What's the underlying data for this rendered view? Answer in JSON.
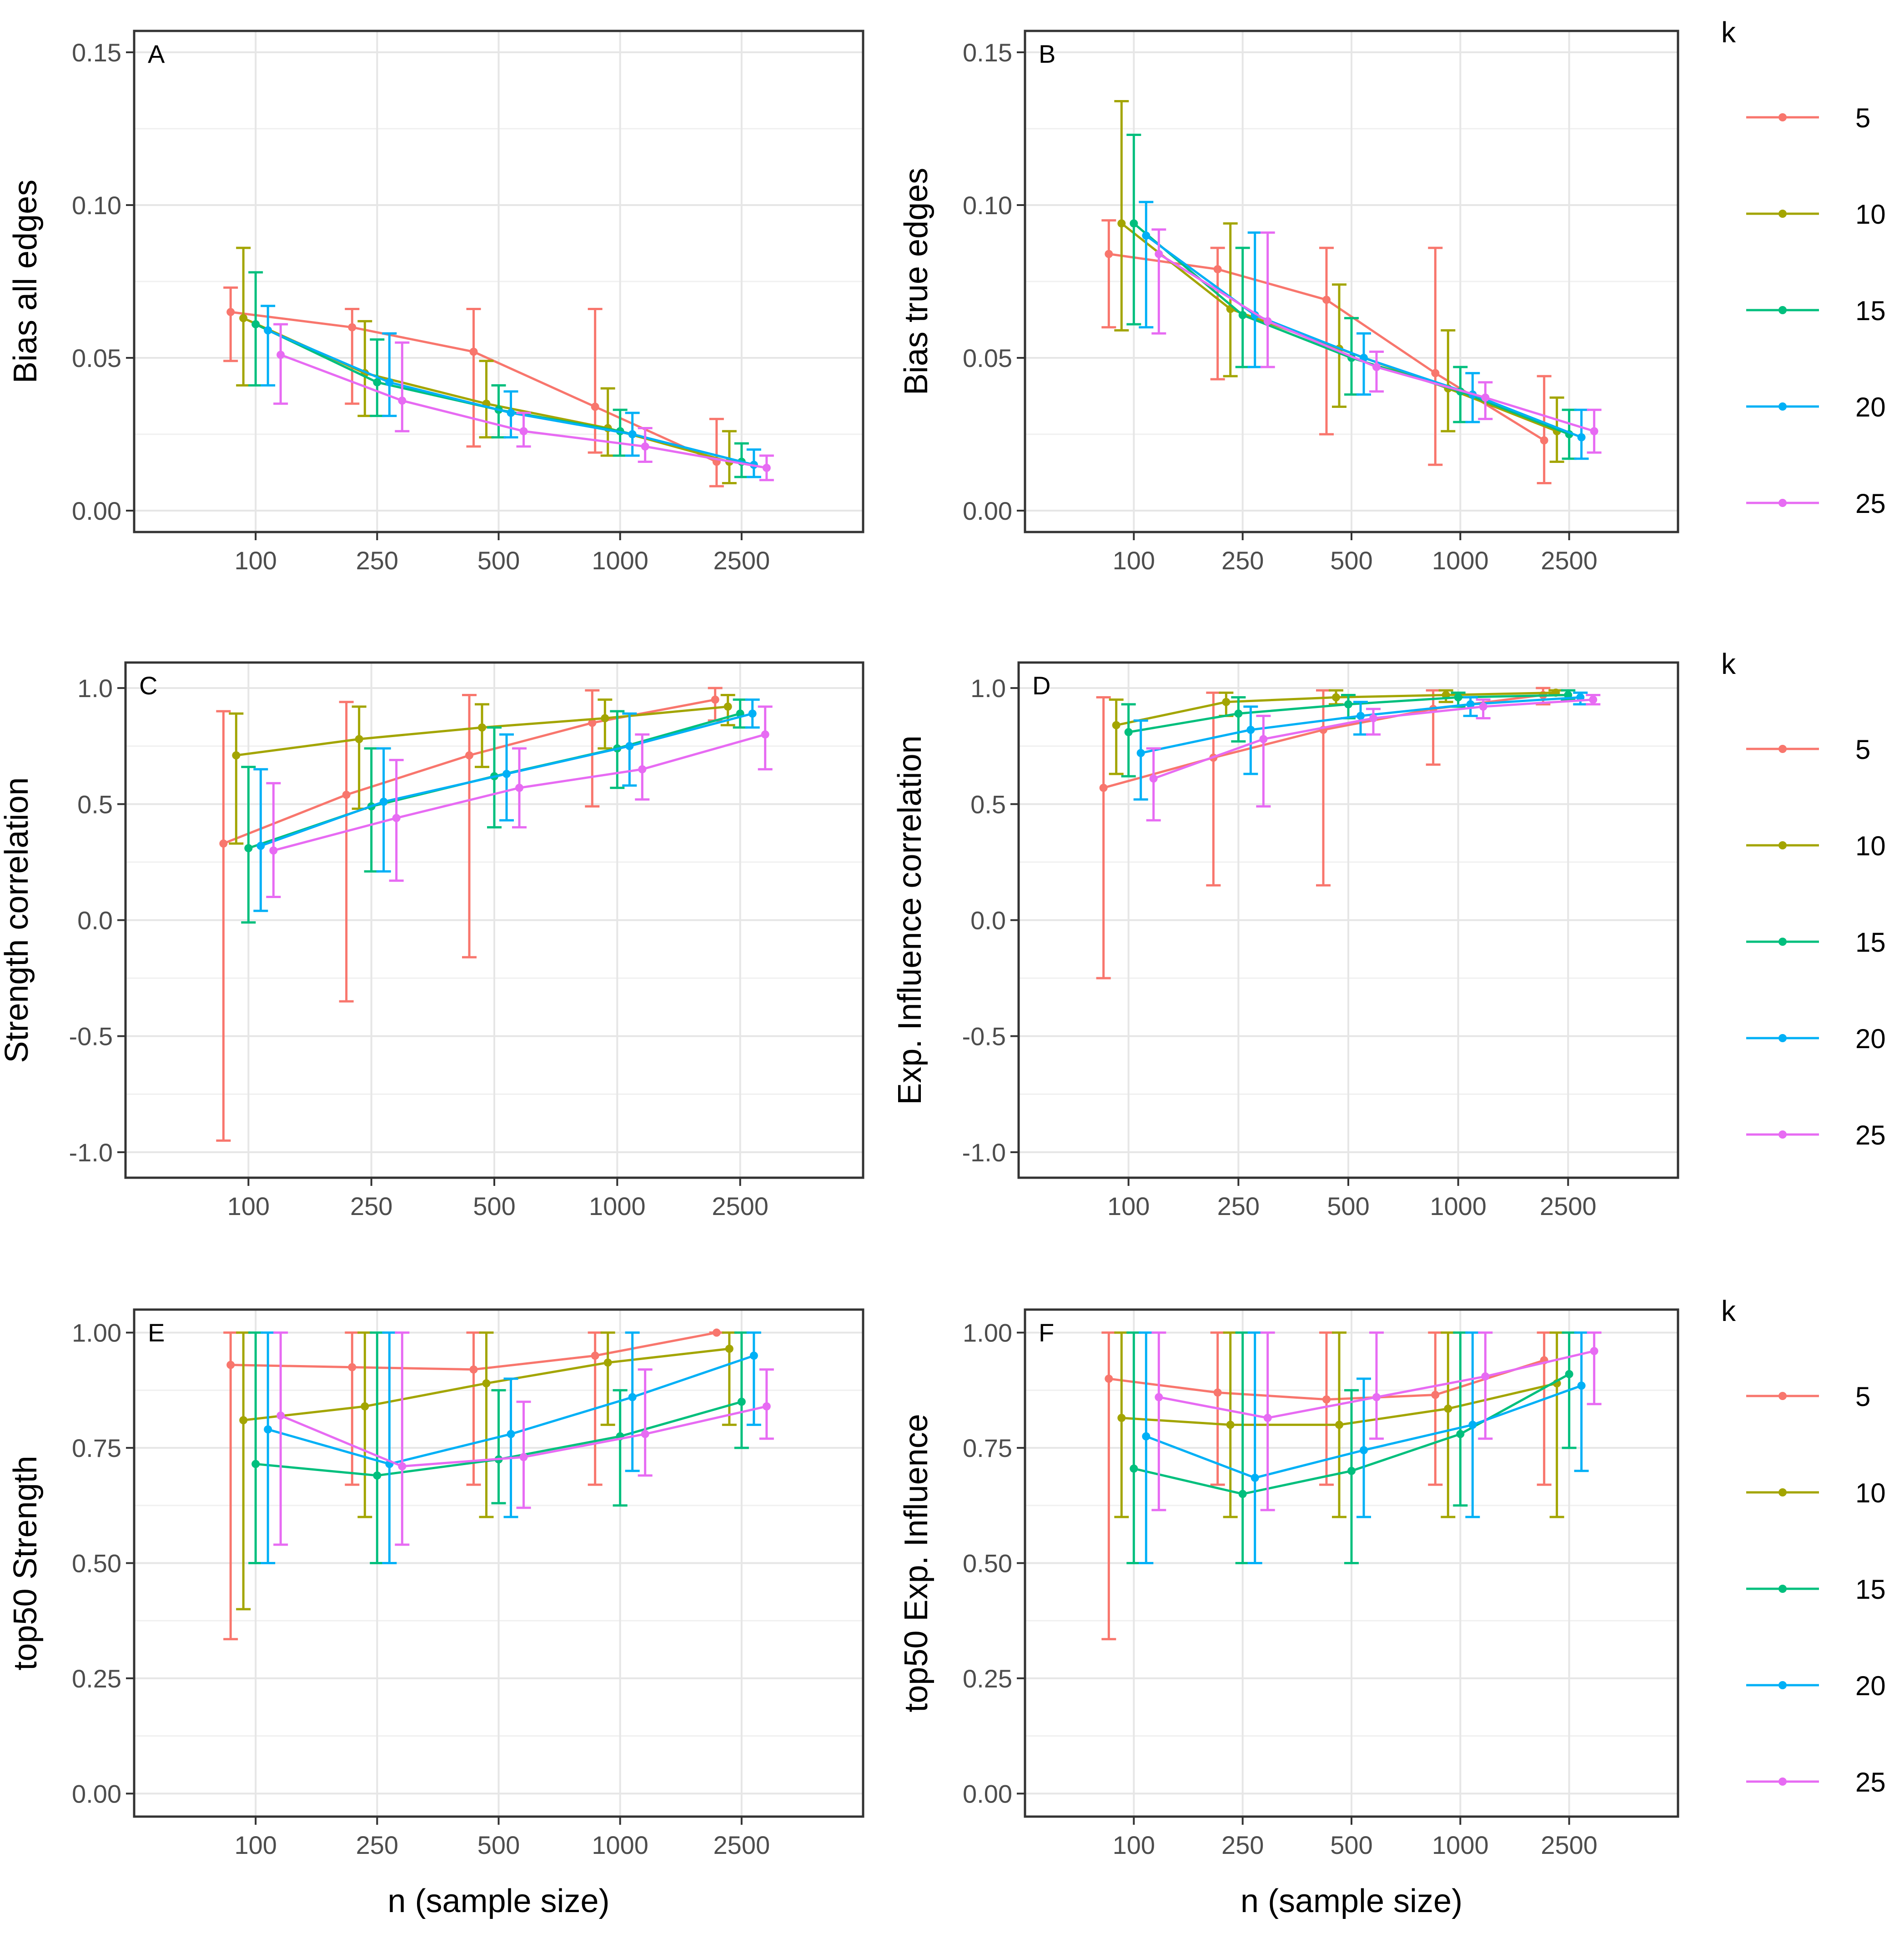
{
  "legend_title": "k",
  "series_names": [
    "5",
    "10",
    "15",
    "20",
    "25"
  ],
  "series_colors": [
    "#F8766D",
    "#A3A500",
    "#00BF7D",
    "#00B0F6",
    "#E76BF3"
  ],
  "chart_data": [
    {
      "type": "line",
      "tag": "A",
      "xlabel": "",
      "ylabel": "Bias all edges",
      "categories": [
        "100",
        "250",
        "500",
        "1000",
        "2500"
      ],
      "ylim": [
        -0.007,
        0.157
      ],
      "yticks": [
        0,
        0.05,
        0.1,
        0.15
      ],
      "ytick_labels": [
        "0.00",
        "0.05",
        "0.10",
        "0.15"
      ],
      "grid": true,
      "series": [
        {
          "name": "5",
          "values": [
            0.065,
            0.06,
            0.052,
            0.034,
            0.016
          ],
          "err_low": [
            0.049,
            0.035,
            0.021,
            0.019,
            0.008
          ],
          "err_high": [
            0.073,
            0.066,
            0.066,
            0.066,
            0.03
          ]
        },
        {
          "name": "10",
          "values": [
            0.063,
            0.045,
            0.035,
            0.027,
            0.016
          ],
          "err_low": [
            0.041,
            0.031,
            0.024,
            0.018,
            0.009
          ],
          "err_high": [
            0.086,
            0.062,
            0.049,
            0.04,
            0.026
          ]
        },
        {
          "name": "15",
          "values": [
            0.061,
            0.042,
            0.033,
            0.026,
            0.016
          ],
          "err_low": [
            0.041,
            0.031,
            0.024,
            0.018,
            0.011
          ],
          "err_high": [
            0.078,
            0.056,
            0.041,
            0.033,
            0.022
          ]
        },
        {
          "name": "20",
          "values": [
            0.059,
            0.042,
            0.032,
            0.025,
            0.015
          ],
          "err_low": [
            0.041,
            0.031,
            0.024,
            0.018,
            0.011
          ],
          "err_high": [
            0.067,
            0.058,
            0.039,
            0.032,
            0.02
          ]
        },
        {
          "name": "25",
          "values": [
            0.051,
            0.036,
            0.026,
            0.021,
            0.014
          ],
          "err_low": [
            0.035,
            0.026,
            0.021,
            0.016,
            0.01
          ],
          "err_high": [
            0.061,
            0.055,
            0.032,
            0.027,
            0.018
          ]
        }
      ]
    },
    {
      "type": "line",
      "tag": "B",
      "xlabel": "",
      "ylabel": "Bias true edges",
      "categories": [
        "100",
        "250",
        "500",
        "1000",
        "2500"
      ],
      "ylim": [
        -0.007,
        0.157
      ],
      "yticks": [
        0,
        0.05,
        0.1,
        0.15
      ],
      "ytick_labels": [
        "0.00",
        "0.05",
        "0.10",
        "0.15"
      ],
      "grid": true,
      "series": [
        {
          "name": "5",
          "values": [
            0.084,
            0.079,
            0.069,
            0.045,
            0.023
          ],
          "err_low": [
            0.06,
            0.043,
            0.025,
            0.015,
            0.009
          ],
          "err_high": [
            0.095,
            0.086,
            0.086,
            0.086,
            0.044
          ]
        },
        {
          "name": "10",
          "values": [
            0.094,
            0.066,
            0.053,
            0.04,
            0.026
          ],
          "err_low": [
            0.059,
            0.044,
            0.034,
            0.026,
            0.016
          ],
          "err_high": [
            0.134,
            0.094,
            0.074,
            0.059,
            0.037
          ]
        },
        {
          "name": "15",
          "values": [
            0.094,
            0.064,
            0.05,
            0.039,
            0.025
          ],
          "err_low": [
            0.061,
            0.047,
            0.038,
            0.029,
            0.017
          ],
          "err_high": [
            0.123,
            0.086,
            0.063,
            0.047,
            0.033
          ]
        },
        {
          "name": "20",
          "values": [
            0.09,
            0.064,
            0.05,
            0.038,
            0.024
          ],
          "err_low": [
            0.06,
            0.047,
            0.038,
            0.029,
            0.017
          ],
          "err_high": [
            0.101,
            0.091,
            0.058,
            0.045,
            0.033
          ]
        },
        {
          "name": "25",
          "values": [
            0.084,
            0.062,
            0.047,
            0.037,
            0.026
          ],
          "err_low": [
            0.058,
            0.047,
            0.039,
            0.03,
            0.019
          ],
          "err_high": [
            0.092,
            0.091,
            0.052,
            0.042,
            0.033
          ]
        }
      ]
    },
    {
      "type": "line",
      "tag": "C",
      "xlabel": "",
      "ylabel": "Strength correlation",
      "categories": [
        "100",
        "250",
        "500",
        "1000",
        "2500"
      ],
      "ylim": [
        -1.11,
        1.11
      ],
      "yticks": [
        -1,
        -0.5,
        0,
        0.5,
        1
      ],
      "ytick_labels": [
        "-1.0",
        "-0.5",
        "0.0",
        "0.5",
        "1.0"
      ],
      "grid": true,
      "series": [
        {
          "name": "5",
          "values": [
            0.33,
            0.54,
            0.71,
            0.85,
            0.95
          ],
          "err_low": [
            -0.95,
            -0.35,
            -0.16,
            0.49,
            0.86
          ],
          "err_high": [
            0.9,
            0.94,
            0.97,
            0.99,
            1.0
          ]
        },
        {
          "name": "10",
          "values": [
            0.71,
            0.78,
            0.83,
            0.87,
            0.92
          ],
          "err_low": [
            0.33,
            0.48,
            0.66,
            0.74,
            0.84
          ],
          "err_high": [
            0.89,
            0.92,
            0.93,
            0.95,
            0.97
          ]
        },
        {
          "name": "15",
          "values": [
            0.31,
            0.49,
            0.62,
            0.74,
            0.89
          ],
          "err_low": [
            -0.01,
            0.21,
            0.4,
            0.57,
            0.83
          ],
          "err_high": [
            0.66,
            0.74,
            0.83,
            0.9,
            0.95
          ]
        },
        {
          "name": "20",
          "values": [
            0.32,
            0.51,
            0.63,
            0.75,
            0.89
          ],
          "err_low": [
            0.04,
            0.21,
            0.43,
            0.58,
            0.83
          ],
          "err_high": [
            0.65,
            0.74,
            0.8,
            0.89,
            0.95
          ]
        },
        {
          "name": "25",
          "values": [
            0.3,
            0.44,
            0.57,
            0.65,
            0.8
          ],
          "err_low": [
            0.1,
            0.17,
            0.4,
            0.52,
            0.65
          ],
          "err_high": [
            0.59,
            0.69,
            0.74,
            0.8,
            0.92
          ]
        }
      ]
    },
    {
      "type": "line",
      "tag": "D",
      "xlabel": "",
      "ylabel": "Exp. Influence correlation",
      "categories": [
        "100",
        "250",
        "500",
        "1000",
        "2500"
      ],
      "ylim": [
        -1.11,
        1.11
      ],
      "yticks": [
        -1,
        -0.5,
        0,
        0.5,
        1
      ],
      "ytick_labels": [
        "-1.0",
        "-0.5",
        "0.0",
        "0.5",
        "1.0"
      ],
      "grid": true,
      "series": [
        {
          "name": "5",
          "values": [
            0.57,
            0.7,
            0.82,
            0.91,
            0.97
          ],
          "err_low": [
            -0.25,
            0.15,
            0.15,
            0.67,
            0.93
          ],
          "err_high": [
            0.96,
            0.98,
            0.99,
            0.99,
            1.0
          ]
        },
        {
          "name": "10",
          "values": [
            0.84,
            0.94,
            0.96,
            0.97,
            0.98
          ],
          "err_low": [
            0.63,
            0.88,
            0.93,
            0.94,
            0.97
          ],
          "err_high": [
            0.95,
            0.98,
            0.99,
            0.99,
            0.99
          ]
        },
        {
          "name": "15",
          "values": [
            0.81,
            0.89,
            0.93,
            0.96,
            0.97
          ],
          "err_low": [
            0.62,
            0.77,
            0.87,
            0.92,
            0.95
          ],
          "err_high": [
            0.93,
            0.96,
            0.97,
            0.98,
            0.99
          ]
        },
        {
          "name": "20",
          "values": [
            0.72,
            0.82,
            0.88,
            0.93,
            0.96
          ],
          "err_low": [
            0.52,
            0.63,
            0.8,
            0.88,
            0.93
          ],
          "err_high": [
            0.86,
            0.92,
            0.94,
            0.96,
            0.98
          ]
        },
        {
          "name": "25",
          "values": [
            0.61,
            0.78,
            0.87,
            0.92,
            0.95
          ],
          "err_low": [
            0.43,
            0.49,
            0.8,
            0.87,
            0.93
          ],
          "err_high": [
            0.74,
            0.88,
            0.91,
            0.95,
            0.97
          ]
        }
      ]
    },
    {
      "type": "line",
      "tag": "E",
      "xlabel": "n (sample size)",
      "ylabel": "top50 Strength",
      "categories": [
        "100",
        "250",
        "500",
        "1000",
        "2500"
      ],
      "ylim": [
        -0.05,
        1.05
      ],
      "yticks": [
        0,
        0.25,
        0.5,
        0.75,
        1
      ],
      "ytick_labels": [
        "0.00",
        "0.25",
        "0.50",
        "0.75",
        "1.00"
      ],
      "grid": true,
      "series": [
        {
          "name": "5",
          "values": [
            0.93,
            0.925,
            0.92,
            0.95,
            1.0
          ],
          "err_low": [
            0.335,
            0.67,
            0.67,
            0.67,
            1.0
          ],
          "err_high": [
            1.0,
            1.0,
            1.0,
            1.0,
            1.0
          ]
        },
        {
          "name": "10",
          "values": [
            0.81,
            0.84,
            0.89,
            0.935,
            0.965
          ],
          "err_low": [
            0.4,
            0.6,
            0.6,
            0.8,
            0.8
          ],
          "err_high": [
            1.0,
            1.0,
            1.0,
            1.0,
            1.0
          ]
        },
        {
          "name": "15",
          "values": [
            0.715,
            0.69,
            0.725,
            0.775,
            0.85
          ],
          "err_low": [
            0.5,
            0.5,
            0.63,
            0.625,
            0.75
          ],
          "err_high": [
            1.0,
            1.0,
            0.875,
            0.875,
            1.0
          ]
        },
        {
          "name": "20",
          "values": [
            0.79,
            0.715,
            0.78,
            0.86,
            0.95
          ],
          "err_low": [
            0.5,
            0.5,
            0.6,
            0.7,
            0.8
          ],
          "err_high": [
            1.0,
            1.0,
            0.9,
            1.0,
            1.0
          ]
        },
        {
          "name": "25",
          "values": [
            0.82,
            0.71,
            0.73,
            0.78,
            0.84
          ],
          "err_low": [
            0.54,
            0.54,
            0.62,
            0.69,
            0.77
          ],
          "err_high": [
            1.0,
            1.0,
            0.85,
            0.92,
            0.92
          ]
        }
      ]
    },
    {
      "type": "line",
      "tag": "F",
      "xlabel": "n (sample size)",
      "ylabel": "top50 Exp. Influence",
      "categories": [
        "100",
        "250",
        "500",
        "1000",
        "2500"
      ],
      "ylim": [
        -0.05,
        1.05
      ],
      "yticks": [
        0,
        0.25,
        0.5,
        0.75,
        1
      ],
      "ytick_labels": [
        "0.00",
        "0.25",
        "0.50",
        "0.75",
        "1.00"
      ],
      "grid": true,
      "series": [
        {
          "name": "5",
          "values": [
            0.9,
            0.87,
            0.855,
            0.865,
            0.94
          ],
          "err_low": [
            0.335,
            0.67,
            0.67,
            0.67,
            0.67
          ],
          "err_high": [
            1.0,
            1.0,
            1.0,
            1.0,
            1.0
          ]
        },
        {
          "name": "10",
          "values": [
            0.815,
            0.8,
            0.8,
            0.835,
            0.89
          ],
          "err_low": [
            0.6,
            0.6,
            0.6,
            0.6,
            0.6
          ],
          "err_high": [
            1.0,
            1.0,
            1.0,
            1.0,
            1.0
          ]
        },
        {
          "name": "15",
          "values": [
            0.705,
            0.65,
            0.7,
            0.78,
            0.91
          ],
          "err_low": [
            0.5,
            0.5,
            0.5,
            0.625,
            0.75
          ],
          "err_high": [
            1.0,
            1.0,
            0.875,
            1.0,
            1.0
          ]
        },
        {
          "name": "20",
          "values": [
            0.775,
            0.685,
            0.745,
            0.8,
            0.885
          ],
          "err_low": [
            0.5,
            0.5,
            0.6,
            0.6,
            0.7
          ],
          "err_high": [
            1.0,
            1.0,
            0.9,
            1.0,
            1.0
          ]
        },
        {
          "name": "25",
          "values": [
            0.86,
            0.815,
            0.86,
            0.905,
            0.96
          ],
          "err_low": [
            0.615,
            0.615,
            0.77,
            0.77,
            0.845
          ],
          "err_high": [
            1.0,
            1.0,
            1.0,
            1.0,
            1.0
          ]
        }
      ]
    }
  ]
}
